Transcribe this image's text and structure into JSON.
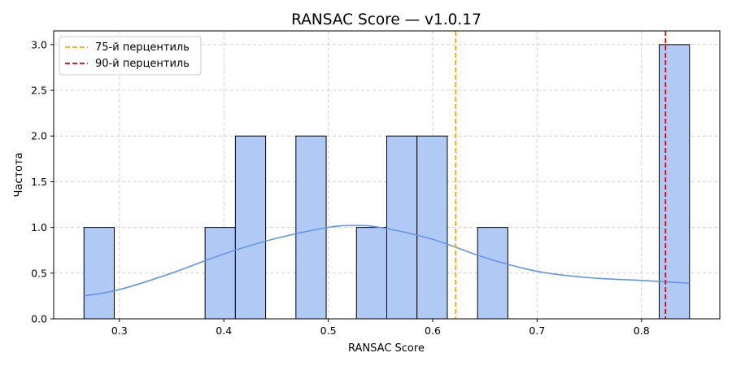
{
  "chart_data": {
    "type": "bar",
    "title": "RANSAC Score — v1.0.17",
    "xlabel": "RANSAC Score",
    "ylabel": "Частота",
    "xlim": [
      0.237,
      0.875
    ],
    "ylim": [
      0,
      3.15
    ],
    "x_ticks": [
      0.3,
      0.4,
      0.5,
      0.6,
      0.7,
      0.8
    ],
    "x_tick_labels": [
      "0.3",
      "0.4",
      "0.5",
      "0.6",
      "0.7",
      "0.8"
    ],
    "y_ticks": [
      0,
      0.5,
      1.0,
      1.5,
      2.0,
      2.5,
      3.0
    ],
    "y_tick_labels": [
      "0.0",
      "0.5",
      "1.0",
      "1.5",
      "2.0",
      "2.5",
      "3.0"
    ],
    "grid": true,
    "bars": [
      {
        "x0": 0.266,
        "x1": 0.295,
        "count": 1
      },
      {
        "x0": 0.382,
        "x1": 0.411,
        "count": 1
      },
      {
        "x0": 0.411,
        "x1": 0.44,
        "count": 2
      },
      {
        "x0": 0.469,
        "x1": 0.498,
        "count": 2
      },
      {
        "x0": 0.527,
        "x1": 0.556,
        "count": 1
      },
      {
        "x0": 0.556,
        "x1": 0.585,
        "count": 2
      },
      {
        "x0": 0.585,
        "x1": 0.614,
        "count": 2
      },
      {
        "x0": 0.643,
        "x1": 0.672,
        "count": 1
      },
      {
        "x0": 0.817,
        "x1": 0.846,
        "count": 3
      }
    ],
    "kde": {
      "x": [
        0.266,
        0.3,
        0.35,
        0.4,
        0.45,
        0.5,
        0.525,
        0.55,
        0.6,
        0.65,
        0.7,
        0.75,
        0.8,
        0.846
      ],
      "y": [
        0.25,
        0.32,
        0.5,
        0.71,
        0.88,
        1.0,
        1.02,
        1.0,
        0.87,
        0.67,
        0.52,
        0.45,
        0.42,
        0.39
      ]
    },
    "reference_lines": [
      {
        "name": "75-й перцентиль",
        "x": 0.622,
        "color": "#ffa500"
      },
      {
        "name": "90-й перцентиль",
        "x": 0.823,
        "color": "#e00000"
      }
    ],
    "legend_position": "top-left",
    "colors": {
      "bar_fill": "#b1c9f5",
      "bar_edge": "#000000",
      "kde_line": "#6495ed",
      "grid": "#cccccc"
    }
  }
}
